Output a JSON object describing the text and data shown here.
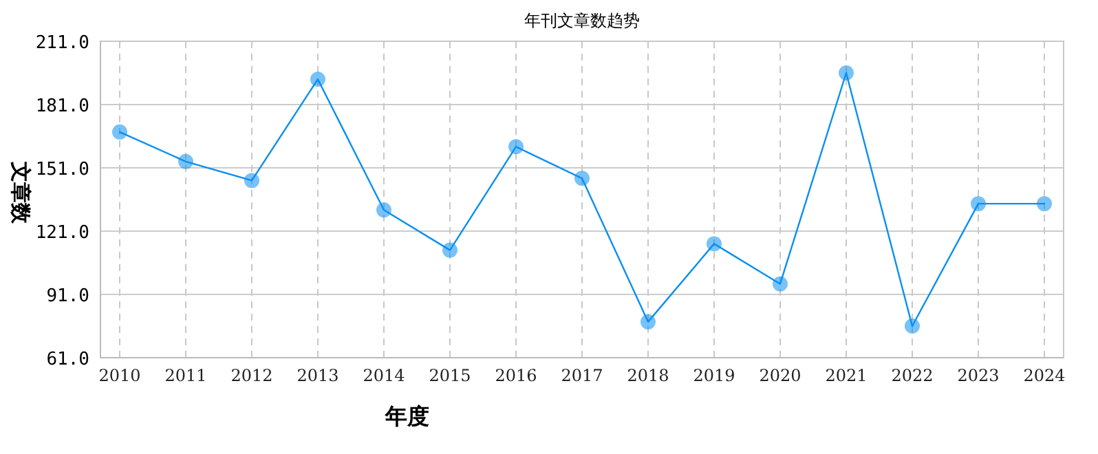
{
  "chart_data": {
    "type": "line",
    "title": "年刊文章数趋势",
    "xlabel": "年度",
    "ylabel": "文章数",
    "categories": [
      "2010",
      "2011",
      "2012",
      "2013",
      "2014",
      "2015",
      "2016",
      "2017",
      "2018",
      "2019",
      "2020",
      "2021",
      "2022",
      "2023",
      "2024"
    ],
    "series": [
      {
        "color": "#0a8ff0",
        "values": [
          168,
          154,
          145,
          193,
          131,
          112,
          161,
          146,
          78,
          115,
          96,
          196,
          76,
          134,
          134
        ]
      }
    ],
    "ylim": [
      61,
      211
    ],
    "yticks": [
      {
        "value": 61,
        "label": "61.0"
      },
      {
        "value": 91,
        "label": "91.0"
      },
      {
        "value": 121,
        "label": "121.0"
      },
      {
        "value": 151,
        "label": "151.0"
      },
      {
        "value": 181,
        "label": "181.0"
      },
      {
        "value": 211,
        "label": "211.0"
      }
    ],
    "grid": true,
    "marker": "circle",
    "line_style": "solid"
  }
}
